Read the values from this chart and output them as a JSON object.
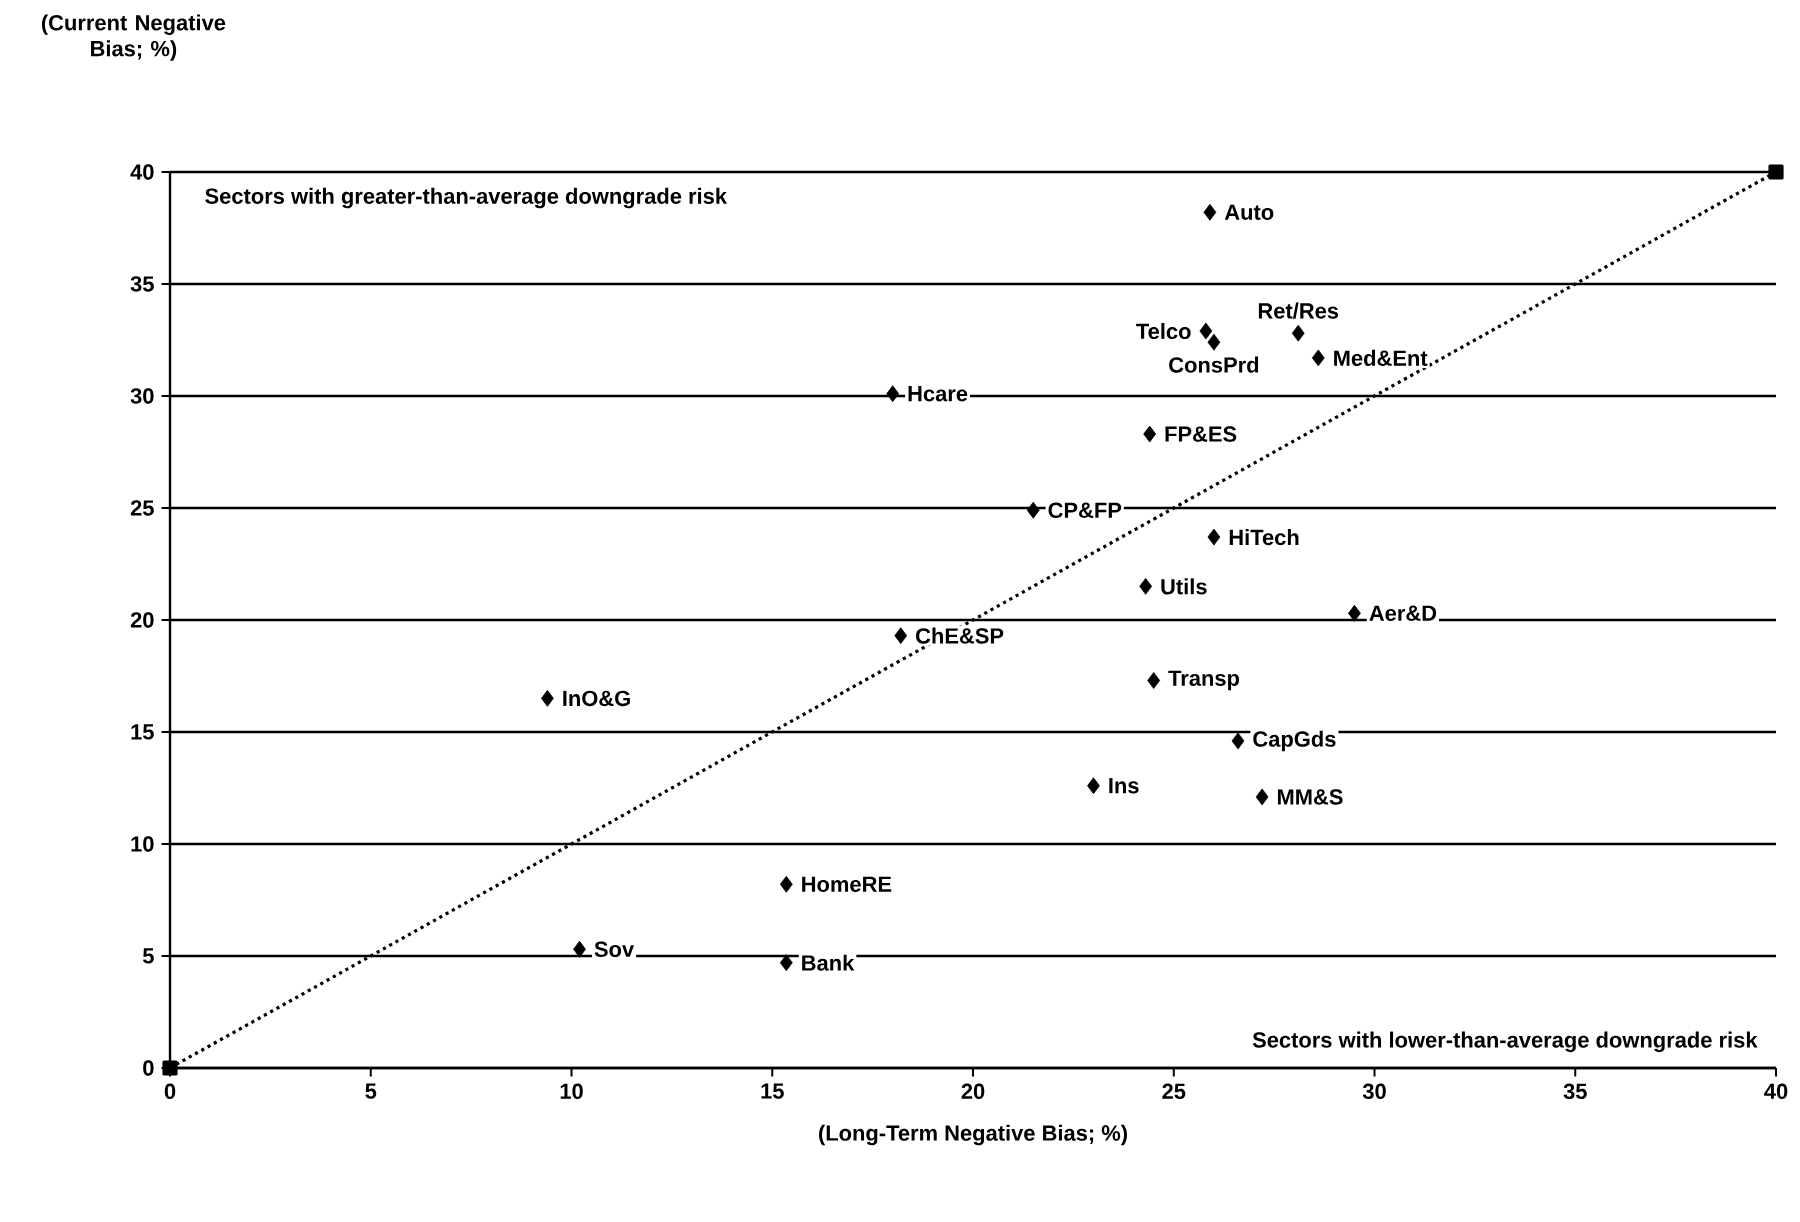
{
  "chart_data": {
    "type": "scatter",
    "xlabel": "(Long-Term Negative Bias; %)",
    "ylabel": "(Current Negative Bias; %)",
    "annotations": [
      "Sectors with greater-than-average downgrade risk",
      "Sectors with lower-than-average downgrade risk"
    ],
    "xlim": [
      0,
      40
    ],
    "ylim": [
      0,
      40
    ],
    "xticks": [
      0,
      5,
      10,
      15,
      20,
      25,
      30,
      35,
      40
    ],
    "yticks": [
      0,
      5,
      10,
      15,
      20,
      25,
      30,
      35,
      40
    ],
    "grid": "y",
    "marker": "diamond",
    "series": [
      {
        "type": "line",
        "color": "#000000",
        "x": [
          0,
          40
        ],
        "values": [
          0,
          40
        ],
        "line_style": "dotted",
        "marker": "square"
      },
      {
        "name": "Auto",
        "color": "#000000",
        "x": [
          25.9
        ],
        "values": [
          38.2
        ]
      },
      {
        "name": "Telco",
        "color": "#000000",
        "x": [
          25.8
        ],
        "values": [
          32.9
        ]
      },
      {
        "name": "ConsPrd",
        "color": "#000000",
        "x": [
          26.0
        ],
        "values": [
          32.4
        ]
      },
      {
        "name": "Ret/Res",
        "color": "#000000",
        "x": [
          28.1
        ],
        "values": [
          32.8
        ]
      },
      {
        "name": "Med&Ent",
        "color": "#000000",
        "x": [
          28.6
        ],
        "values": [
          31.7
        ]
      },
      {
        "name": "Hcare",
        "color": "#000000",
        "x": [
          18.0
        ],
        "values": [
          30.1
        ]
      },
      {
        "name": "FP&ES",
        "color": "#000000",
        "x": [
          24.4
        ],
        "values": [
          28.3
        ]
      },
      {
        "name": "CP&FP",
        "color": "#000000",
        "x": [
          21.5
        ],
        "values": [
          24.9
        ]
      },
      {
        "name": "HiTech",
        "color": "#000000",
        "x": [
          26.0
        ],
        "values": [
          23.7
        ]
      },
      {
        "name": "Utils",
        "color": "#000000",
        "x": [
          24.3
        ],
        "values": [
          21.5
        ]
      },
      {
        "name": "Aer&D",
        "color": "#000000",
        "x": [
          29.5
        ],
        "values": [
          20.3
        ]
      },
      {
        "name": "ChE&SP",
        "color": "#000000",
        "x": [
          18.2
        ],
        "values": [
          19.3
        ]
      },
      {
        "name": "Transp",
        "color": "#000000",
        "x": [
          24.5
        ],
        "values": [
          17.3
        ]
      },
      {
        "name": "InO&G",
        "color": "#000000",
        "x": [
          9.4
        ],
        "values": [
          16.5
        ]
      },
      {
        "name": "CapGds",
        "color": "#000000",
        "x": [
          26.6
        ],
        "values": [
          14.6
        ]
      },
      {
        "name": "Ins",
        "color": "#000000",
        "x": [
          23.0
        ],
        "values": [
          12.6
        ]
      },
      {
        "name": "MM&S",
        "color": "#000000",
        "x": [
          27.2
        ],
        "values": [
          12.1
        ]
      },
      {
        "name": "HomeRE",
        "color": "#000000",
        "x": [
          15.35
        ],
        "values": [
          8.2
        ]
      },
      {
        "name": "Sov",
        "color": "#000000",
        "x": [
          10.2
        ],
        "values": [
          5.3
        ]
      },
      {
        "name": "Bank",
        "color": "#000000",
        "x": [
          15.35
        ],
        "values": [
          4.7
        ]
      }
    ]
  }
}
